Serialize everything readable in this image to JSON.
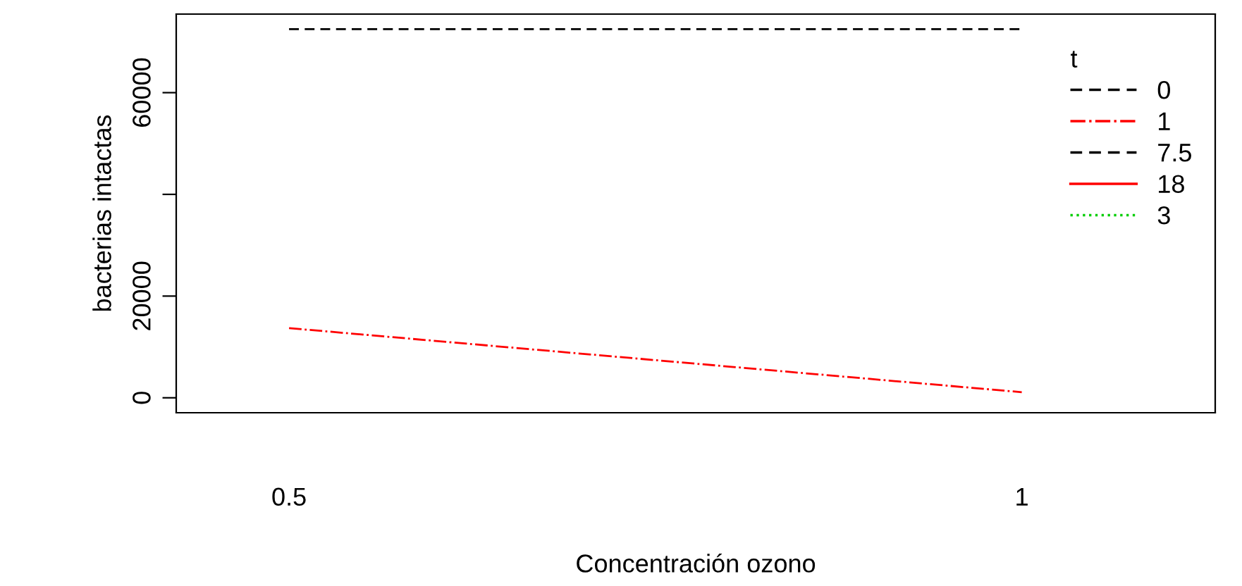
{
  "chart_data": {
    "type": "line",
    "xlabel": "Concentración ozono",
    "ylabel": "bacterias intactas",
    "x": [
      0.5,
      1
    ],
    "xlim": [
      0.423,
      1.132
    ],
    "xticks": [
      0.5,
      1
    ],
    "series": [
      {
        "name": "0",
        "color": "#000000",
        "line_style": "dashed",
        "values": [
          72500,
          72500
        ]
      },
      {
        "name": "1",
        "color": "#ff0000",
        "line_style": "dashdot",
        "values": [
          13700,
          1100
        ]
      },
      {
        "name": "7.5",
        "color": "#000000",
        "line_style": "dashed",
        "values": [
          null,
          null
        ]
      },
      {
        "name": "18",
        "color": "#ff0000",
        "line_style": "solid",
        "values": [
          null,
          null
        ]
      },
      {
        "name": "3",
        "color": "#00cd00",
        "line_style": "dotted",
        "values": [
          null,
          null
        ]
      }
    ],
    "legend_title": "t",
    "legend": "top right",
    "grid": false,
    "marker": "none",
    "ylim": [
      -2940,
      75450
    ],
    "yticks": [
      0,
      20000,
      {
        "value": 40000,
        "label": null
      },
      60000
    ]
  }
}
